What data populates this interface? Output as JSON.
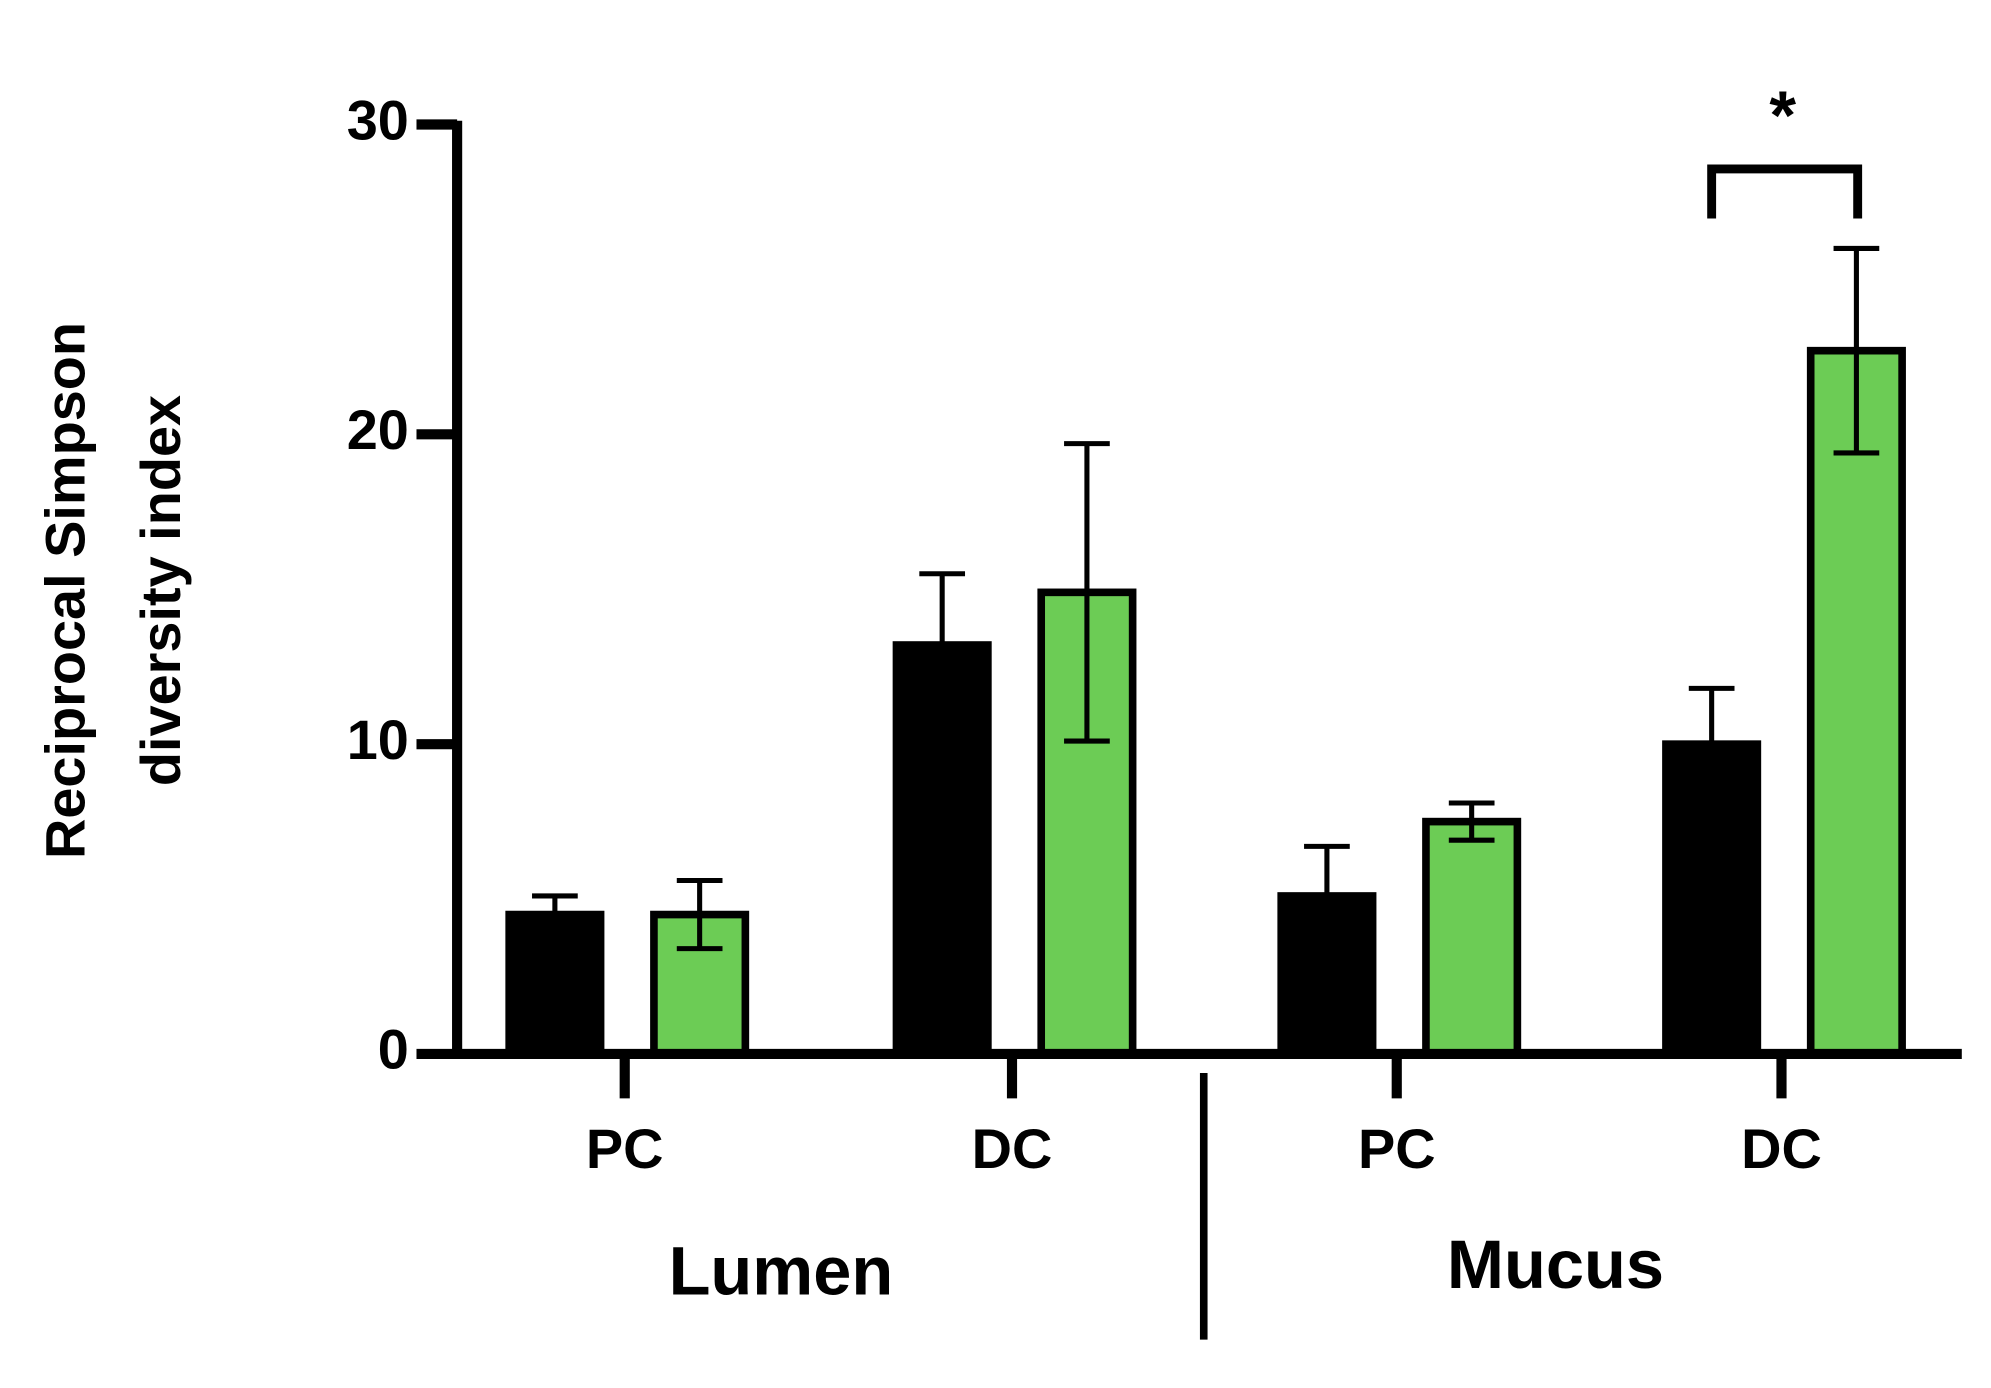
{
  "chart_data": {
    "type": "bar",
    "y_label": [
      "Reciprocal Simpson",
      "diversity index"
    ],
    "categories": [
      "PC",
      "DC",
      "PC",
      "DC"
    ],
    "groups": [
      "Lumen",
      "Mucus"
    ],
    "series": [
      {
        "color": "#000000",
        "values": [
          4.5,
          13.2,
          5.1,
          10.0
        ],
        "errors": [
          0.6,
          2.3,
          1.6,
          1.8
        ]
      },
      {
        "color": "#6ccc55",
        "values": [
          4.5,
          14.9,
          7.5,
          22.7
        ],
        "errors": [
          1.1,
          4.8,
          0.6,
          3.3
        ]
      }
    ],
    "ylim": [
      0,
      30
    ],
    "yticks": [
      0,
      10,
      20,
      30
    ],
    "annotations": [
      {
        "text": "*"
      }
    ]
  }
}
